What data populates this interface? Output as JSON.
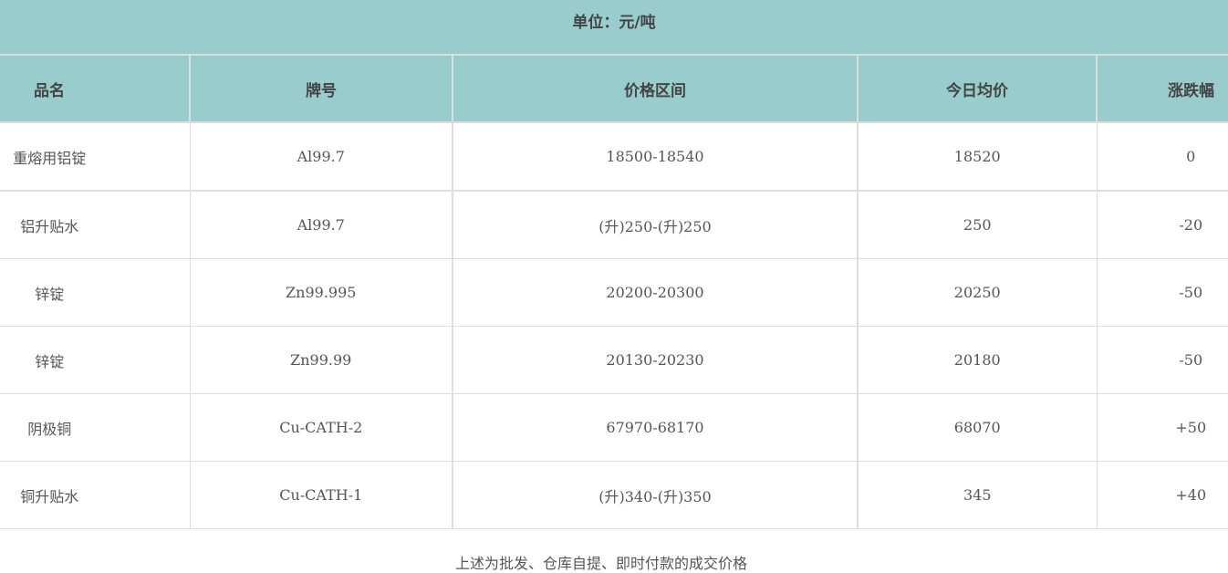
{
  "unit_label": "单位：元/吨",
  "columns": [
    "品名",
    "牌号",
    "价格区间",
    "今日均价",
    "涨跌幅"
  ],
  "rows": [
    [
      "重熔用铝锭",
      "Al99.7",
      "18500-18540",
      "18520",
      "0"
    ],
    [
      "铝升贴水",
      "Al99.7",
      "(升)250-(升)250",
      "250",
      "-20"
    ],
    [
      "锌锭",
      "Zn99.995",
      "20200-20300",
      "20250",
      "-50"
    ],
    [
      "锌锭",
      "Zn99.99",
      "20130-20230",
      "20180",
      "-50"
    ],
    [
      "阴极铜",
      "Cu-CATH-2",
      "67970-68170",
      "68070",
      "+50"
    ],
    [
      "铜升贴水",
      "Cu-CATH-1",
      "(升)340-(升)350",
      "345",
      "+40"
    ]
  ],
  "footnote": "上述为批发、仓库自提、即时付款的成交价格",
  "colors": {
    "header_bg": "#99cccc",
    "border": "#dddddd",
    "text": "#555555"
  }
}
